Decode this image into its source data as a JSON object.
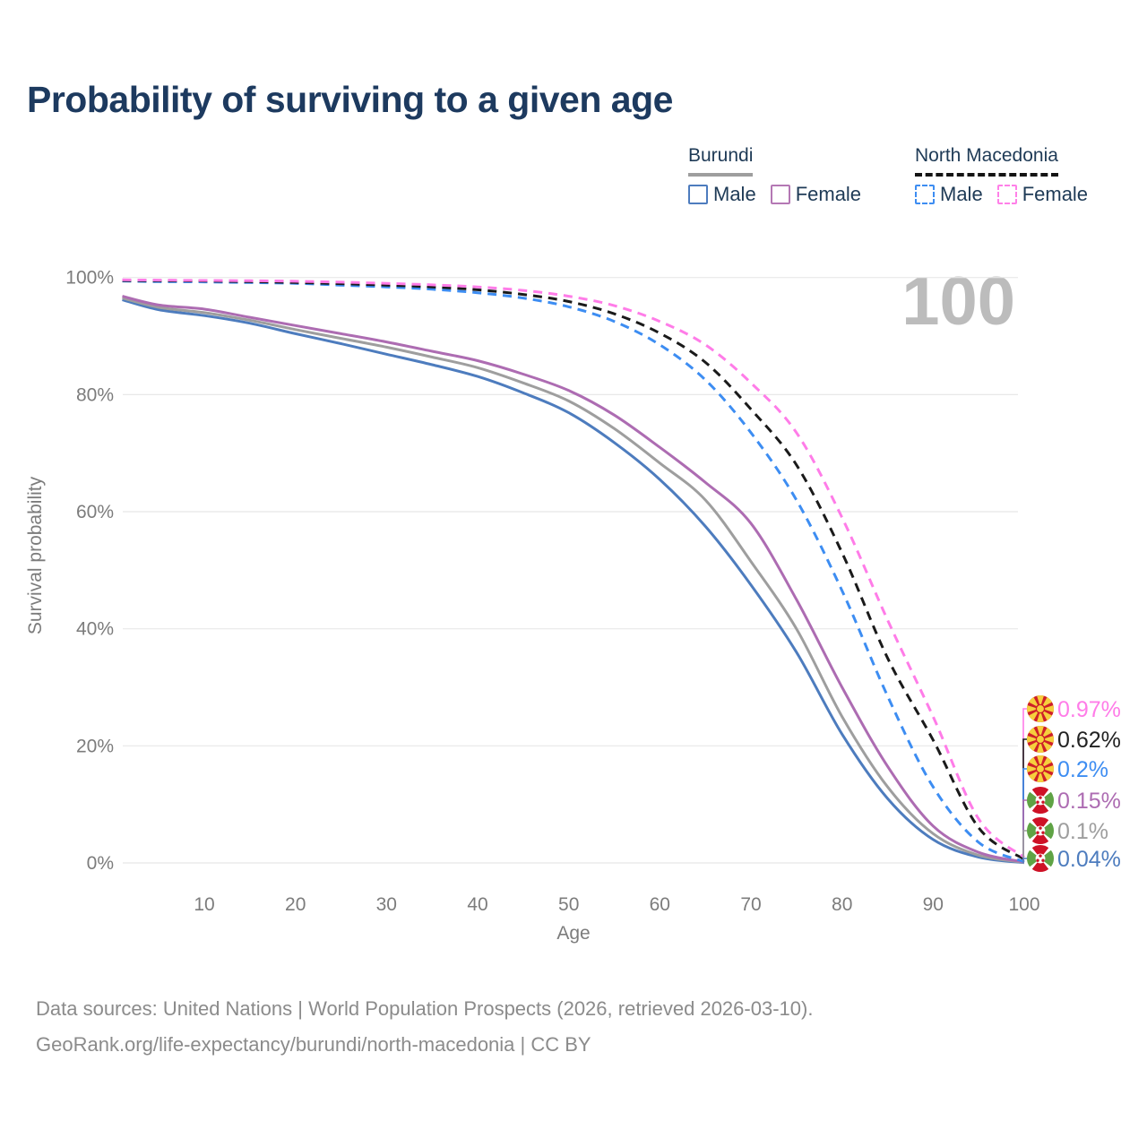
{
  "header": {
    "title": "Probability of surviving to a given age"
  },
  "legend": {
    "groups": [
      {
        "name": "Burundi",
        "line_style": "solid",
        "line_color": "#9e9e9e",
        "items": [
          {
            "label": "Male",
            "color": "#4d7cbe",
            "style": "solid"
          },
          {
            "label": "Female",
            "color": "#b478b4",
            "style": "solid"
          }
        ]
      },
      {
        "name": "North Macedonia",
        "line_style": "dashed",
        "line_color": "#141414",
        "items": [
          {
            "label": "Male",
            "color": "#3d8df2",
            "style": "dashed"
          },
          {
            "label": "Female",
            "color": "#ff80e8",
            "style": "dashed"
          }
        ]
      }
    ]
  },
  "chart_data": {
    "type": "line",
    "title": "Probability of surviving to a given age",
    "xlabel": "Age",
    "ylabel": "Survival probability",
    "xlim": [
      1,
      100
    ],
    "ylim": [
      0,
      100
    ],
    "grid": "horizontal",
    "age_counter": "100",
    "x_ticks": [
      10,
      20,
      30,
      40,
      50,
      60,
      70,
      80,
      90,
      100
    ],
    "y_ticks": [
      {
        "value": 0,
        "label": "0%"
      },
      {
        "value": 20,
        "label": "20%"
      },
      {
        "value": 40,
        "label": "40%"
      },
      {
        "value": 60,
        "label": "60%"
      },
      {
        "value": 80,
        "label": "80%"
      },
      {
        "value": 100,
        "label": "100%"
      }
    ],
    "ages": [
      1,
      5,
      10,
      15,
      20,
      25,
      30,
      35,
      40,
      45,
      50,
      55,
      60,
      65,
      70,
      75,
      80,
      85,
      90,
      95,
      100
    ],
    "series": [
      {
        "id": "burundi-male",
        "country": "Burundi",
        "sex": "Male",
        "style": "solid",
        "color": "#4d7cbe",
        "end_label": "0.04%",
        "flag": "burundi",
        "values": [
          96.2,
          94.5,
          93.5,
          92.2,
          90.4,
          88.7,
          86.9,
          85.1,
          83.1,
          80.3,
          76.9,
          71.8,
          65.5,
          57.5,
          47.5,
          36.0,
          22.0,
          11.0,
          4.0,
          1.0,
          0.04
        ]
      },
      {
        "id": "burundi-both-sexes",
        "country": "Burundi",
        "sex": "Both sexes",
        "style": "solid",
        "color": "#9e9e9e",
        "end_label": "0.1%",
        "flag": "burundi",
        "values": [
          96.5,
          94.9,
          94.0,
          92.7,
          91.1,
          89.6,
          88.1,
          86.4,
          84.6,
          82.0,
          78.9,
          74.2,
          68.3,
          62.0,
          51.5,
          40.0,
          25.0,
          13.0,
          5.0,
          1.3,
          0.1
        ]
      },
      {
        "id": "burundi-female",
        "country": "Burundi",
        "sex": "Female",
        "style": "solid",
        "color": "#ad6cb2",
        "end_label": "0.15%",
        "flag": "burundi",
        "values": [
          96.8,
          95.3,
          94.6,
          93.2,
          91.8,
          90.4,
          89.0,
          87.4,
          85.8,
          83.5,
          80.7,
          76.5,
          71.0,
          65.0,
          58.0,
          45.0,
          30.0,
          16.5,
          6.3,
          1.8,
          0.15
        ]
      },
      {
        "id": "north-macedonia-male",
        "country": "North Macedonia",
        "sex": "Male",
        "style": "dashed",
        "color": "#3d8df2",
        "end_label": "0.2%",
        "flag": "north-macedonia",
        "values": [
          99.4,
          99.3,
          99.25,
          99.15,
          99.0,
          98.7,
          98.4,
          98.0,
          97.4,
          96.5,
          95.0,
          92.5,
          88.5,
          82.5,
          73.5,
          62.0,
          46.5,
          28.5,
          13.0,
          3.5,
          0.2
        ]
      },
      {
        "id": "north-macedonia-both-sexes",
        "country": "North Macedonia",
        "sex": "Both sexes",
        "style": "dashed",
        "color": "#1a1a1a",
        "end_label": "0.62%",
        "flag": "north-macedonia",
        "values": [
          99.5,
          99.45,
          99.4,
          99.3,
          99.15,
          98.95,
          98.7,
          98.4,
          97.9,
          97.1,
          95.9,
          93.8,
          90.5,
          85.5,
          77.5,
          68.0,
          53.0,
          35.0,
          21.0,
          6.0,
          0.62
        ]
      },
      {
        "id": "north-macedonia-female",
        "country": "North Macedonia",
        "sex": "Female",
        "style": "dashed",
        "color": "#ff7ce8",
        "end_label": "0.97%",
        "flag": "north-macedonia",
        "values": [
          99.6,
          99.55,
          99.5,
          99.45,
          99.35,
          99.2,
          99.0,
          98.75,
          98.4,
          97.8,
          96.8,
          95.2,
          92.5,
          88.5,
          82.0,
          73.5,
          59.0,
          41.5,
          25.0,
          7.5,
          0.97
        ]
      }
    ]
  },
  "footer": {
    "line1": "Data sources: United Nations | World Population Prospects (2026, retrieved 2026-03-10).",
    "line2": "GeoRank.org/life-expectancy/burundi/north-macedonia | CC BY"
  }
}
